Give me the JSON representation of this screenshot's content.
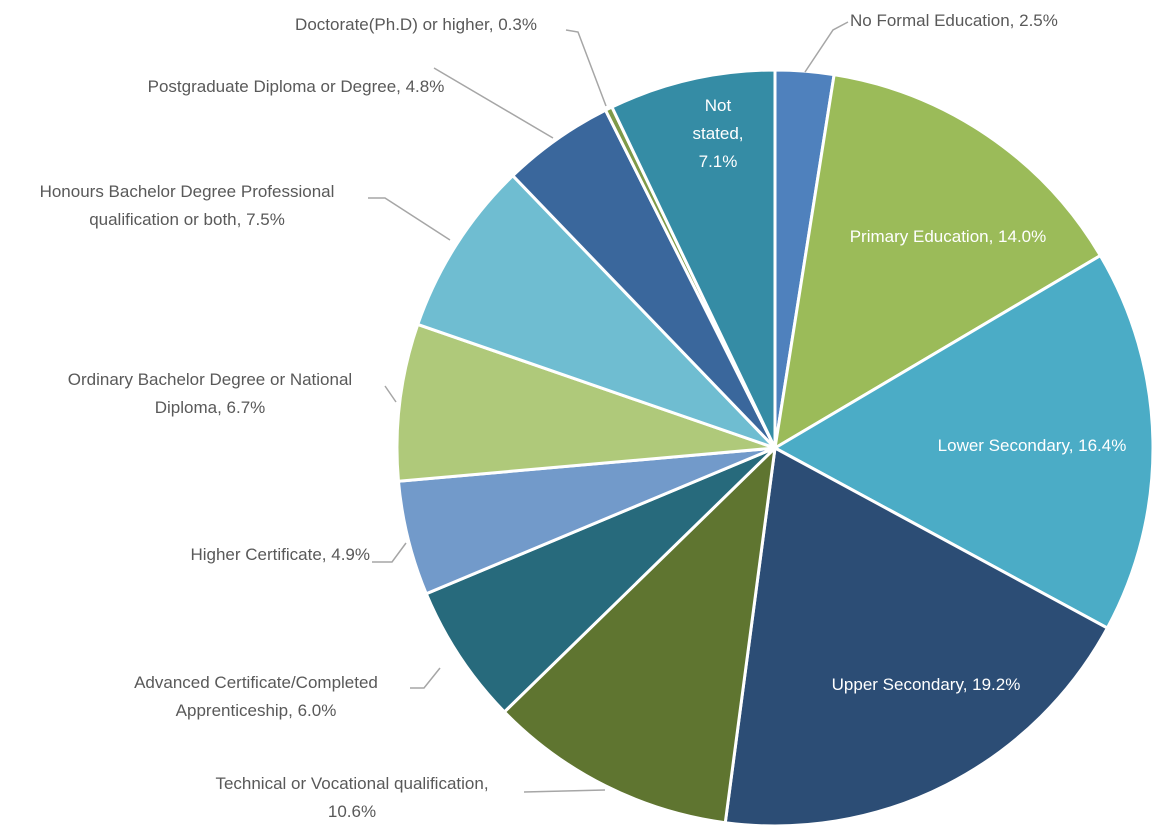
{
  "chart_data": {
    "type": "pie",
    "values": [
      2.5,
      14.0,
      16.4,
      19.2,
      10.6,
      6.0,
      4.9,
      6.7,
      7.5,
      4.8,
      0.3,
      7.1
    ],
    "value_labels": [
      "No Formal Education, 2.5%",
      "Primary Education, 14.0%",
      "Lower Secondary, 16.4%",
      "Upper Secondary, 19.2%",
      "Technical or Vocational qualification, 10.6%",
      "Advanced Certificate/Completed Apprenticeship, 6.0%",
      "Higher Certificate, 4.9%",
      "Ordinary Bachelor Degree or National Diploma, 6.7%",
      "Honours Bachelor Degree Professional qualification or both, 7.5%",
      "Postgraduate Diploma or Degree, 4.8%",
      "Doctorate(Ph.D) or higher, 0.3%",
      "Not stated, 7.1%"
    ],
    "colors": [
      "#4f81bd",
      "#9bbb59",
      "#4bacc6",
      "#2c4d75",
      "#5f7530",
      "#276a7c",
      "#729aca",
      "#afc97a",
      "#6fbdd1",
      "#3a679c",
      "#7f9a48",
      "#358ca5"
    ]
  }
}
